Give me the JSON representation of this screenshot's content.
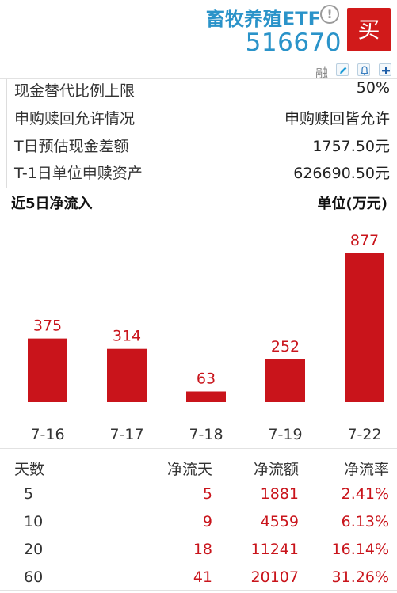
{
  "header": {
    "fund_name": "畜牧养殖ETF",
    "fund_code": "516670",
    "info_icon_glyph": "!",
    "buy_label": "买",
    "rong_label": "融",
    "colors": {
      "accent": "#2a93c9",
      "buy": "#d11a1a"
    }
  },
  "info_rows": [
    {
      "label": "现金替代比例上限",
      "value": "50%"
    },
    {
      "label": "申购赎回允许情况",
      "value": "申购赎回皆允许"
    },
    {
      "label": "T日预估现金差额",
      "value": "1757.50元"
    },
    {
      "label": "T-1日单位申赎资产",
      "value": "626690.50元"
    }
  ],
  "flow": {
    "title": "近5日净流入",
    "unit": "单位(万元)"
  },
  "chart_data": {
    "type": "bar",
    "categories": [
      "7-16",
      "7-17",
      "7-18",
      "7-19",
      "7-22"
    ],
    "values": [
      375,
      314,
      63,
      252,
      877
    ],
    "title": "近5日净流入",
    "ylabel": "单位(万元)",
    "ylim": [
      0,
      877
    ],
    "grid": false,
    "bar_color": "#c9141b"
  },
  "table": {
    "headers": [
      "天数",
      "净流天",
      "净流额",
      "净流率"
    ],
    "rows": [
      {
        "days": "5",
        "inflow_days": "5",
        "amount": "1881",
        "rate": "2.41%"
      },
      {
        "days": "10",
        "inflow_days": "9",
        "amount": "4559",
        "rate": "6.13%"
      },
      {
        "days": "20",
        "inflow_days": "18",
        "amount": "11241",
        "rate": "16.14%"
      },
      {
        "days": "60",
        "inflow_days": "41",
        "amount": "20107",
        "rate": "31.26%"
      }
    ]
  }
}
